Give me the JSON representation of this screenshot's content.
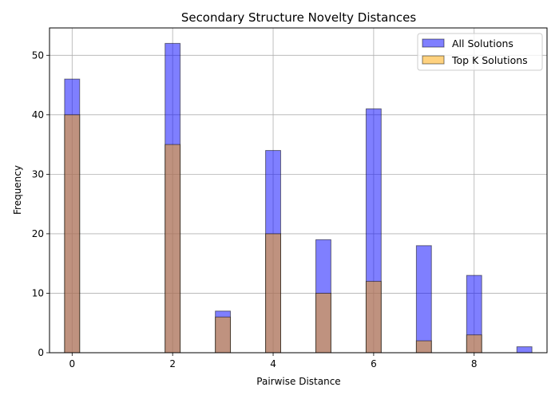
{
  "chart_data": {
    "type": "bar",
    "title": "Secondary Structure Novelty Distances",
    "xlabel": "Pairwise Distance",
    "ylabel": "Frequency",
    "xlim": [
      -0.45,
      9.45
    ],
    "ylim": [
      0,
      54.6
    ],
    "xticks": [
      0,
      2,
      4,
      6,
      8
    ],
    "yticks": [
      0,
      10,
      20,
      30,
      40,
      50
    ],
    "bin_width": 0.3,
    "grid": true,
    "legend_position": "top-right",
    "series": [
      {
        "name": "All Solutions",
        "color": "#0000ff",
        "alpha": 0.5,
        "x": [
          0,
          2,
          3,
          4,
          5,
          6,
          7,
          8,
          9
        ],
        "values": [
          46,
          52,
          7,
          34,
          19,
          41,
          18,
          13,
          1
        ]
      },
      {
        "name": "Top K Solutions",
        "color": "#ffa500",
        "alpha": 0.5,
        "x": [
          0,
          2,
          3,
          4,
          5,
          6,
          7,
          8,
          9
        ],
        "values": [
          40,
          35,
          6,
          20,
          10,
          12,
          2,
          3,
          0
        ]
      }
    ]
  }
}
